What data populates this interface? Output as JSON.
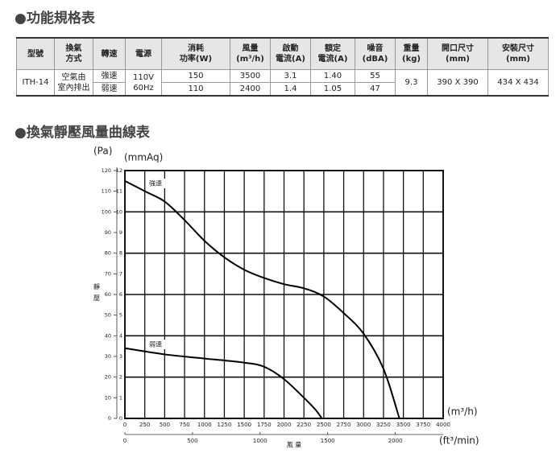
{
  "sections": [
    "●功能規格表",
    "●換氣靜壓風量曲線表"
  ],
  "table": {
    "headers": [
      [
        "型號"
      ],
      [
        "換氣",
        "方式"
      ],
      [
        "轉速"
      ],
      [
        "電源"
      ],
      [
        "消耗",
        "功率(W)"
      ],
      [
        "風量",
        "(m³/h)"
      ],
      [
        "啟動",
        "電流(A)"
      ],
      [
        "額定",
        "電流(A)"
      ],
      [
        "噪音",
        "(dBA)"
      ],
      [
        "重量",
        "(kg)"
      ],
      [
        "開口尺寸",
        "(mm)"
      ],
      [
        "安裝尺寸",
        "(mm)"
      ]
    ],
    "model": "ITH-14",
    "method": [
      "空氣由",
      "室內排出"
    ],
    "power": [
      "110V",
      "60Hz"
    ],
    "rows": [
      [
        "強速",
        "150",
        "3500",
        "3.1",
        "1.40",
        "55"
      ],
      [
        "弱速",
        "110",
        "2400",
        "1.4",
        "1.05",
        "47"
      ]
    ],
    "weight": "9.3",
    "opening": "390 X 390",
    "install": "434 X 434"
  },
  "chart_data": {
    "type": "line",
    "y_unit": "(Pa)",
    "y2_unit": "(mmAq)",
    "y_title": "靜壓",
    "x_title": "風 量",
    "x_unit": "(m³/h)",
    "x2_unit": "(ft³/min)",
    "xlim": [
      0,
      4000
    ],
    "xticks": [
      0,
      250,
      500,
      750,
      1000,
      1250,
      1500,
      1750,
      2000,
      2250,
      2500,
      2750,
      3000,
      3250,
      3500,
      3750,
      4000
    ],
    "x2lim": [
      0,
      2354
    ],
    "x2ticks": [
      0,
      500,
      1000,
      1500,
      2000
    ],
    "ylim": [
      0,
      120
    ],
    "yticks": [
      0,
      10,
      20,
      30,
      40,
      50,
      60,
      70,
      80,
      90,
      100,
      110,
      120
    ],
    "y2lim": [
      0,
      12
    ],
    "y2ticks": [
      0,
      1,
      2,
      3,
      4,
      5,
      6,
      7,
      8,
      9,
      10,
      11,
      12
    ],
    "grid": true,
    "series": [
      {
        "name": "強速",
        "color": "#000000",
        "x": [
          0,
          250,
          500,
          750,
          1000,
          1250,
          1500,
          1750,
          2000,
          2250,
          2500,
          2750,
          3000,
          3250,
          3450
        ],
        "values": [
          115,
          110,
          105,
          96,
          86,
          78,
          72,
          68,
          65,
          63,
          59,
          51,
          41,
          24,
          0
        ]
      },
      {
        "name": "弱速",
        "color": "#000000",
        "x": [
          0,
          500,
          1000,
          1500,
          1750,
          2000,
          2250,
          2400,
          2475
        ],
        "values": [
          34,
          31,
          29,
          27,
          25,
          19,
          10,
          4,
          0
        ]
      }
    ]
  }
}
